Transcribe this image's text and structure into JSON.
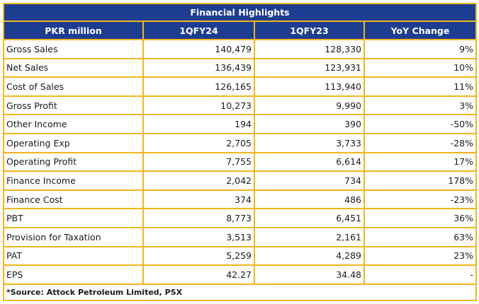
{
  "title": "Financial Highlights",
  "columns": [
    "PKR million",
    "1QFY24",
    "1QFY23",
    "YoY Change"
  ],
  "rows": [
    {
      "label": "Gross Sales",
      "q24": "140,479",
      "q23": "128,330",
      "yoy": "9%"
    },
    {
      "label": "Net Sales",
      "q24": "136,439",
      "q23": "123,931",
      "yoy": "10%"
    },
    {
      "label": "Cost of Sales",
      "q24": "126,165",
      "q23": "113,940",
      "yoy": "11%"
    },
    {
      "label": "Gross Profit",
      "q24": "10,273",
      "q23": "9,990",
      "yoy": "3%"
    },
    {
      "label": "Other Income",
      "q24": "194",
      "q23": "390",
      "yoy": "-50%"
    },
    {
      "label": "Operating Exp",
      "q24": "2,705",
      "q23": "3,733",
      "yoy": "-28%"
    },
    {
      "label": "Operating Profit",
      "q24": "7,755",
      "q23": "6,614",
      "yoy": "17%"
    },
    {
      "label": "Finance Income",
      "q24": "2,042",
      "q23": "734",
      "yoy": "178%"
    },
    {
      "label": "Finance Cost",
      "q24": "374",
      "q23": "486",
      "yoy": "-23%"
    },
    {
      "label": "PBT",
      "q24": "8,773",
      "q23": "6,451",
      "yoy": "36%"
    },
    {
      "label": "Provision for Taxation",
      "q24": "3,513",
      "q23": "2,161",
      "yoy": "63%"
    },
    {
      "label": "PAT",
      "q24": "5,259",
      "q23": "4,289",
      "yoy": "23%"
    },
    {
      "label": "EPS",
      "q24": "42.27",
      "q23": "34.48",
      "yoy": "-"
    }
  ],
  "source": "*Source: Attock Petroleum Limited, PSX",
  "colors": {
    "header_bg": "#1d3d91",
    "header_text": "#ffffff",
    "border": "#f2b71c"
  }
}
